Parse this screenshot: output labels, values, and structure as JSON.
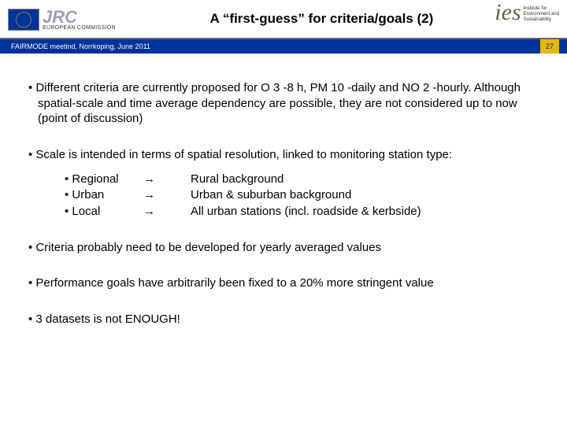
{
  "header": {
    "jrc_abbrev": "JRC",
    "jrc_full": "EUROPEAN COMMISSION",
    "title": "A “first-guess” for criteria/goals (2)",
    "ies_abbrev": "ies",
    "ies_line1": "Institute for",
    "ies_line2": "Environment and",
    "ies_line3": "Sustainability"
  },
  "subbar": {
    "text": "FAIRMODE meetind, Norrkoping, June 2011",
    "page": "27"
  },
  "bullets": {
    "b1": "Different criteria are currently proposed for O 3 -8 h, PM 10 -daily and NO 2 -hourly. Although spatial-scale and time average dependency are possible, they are not considered up to now (point of discussion)",
    "b2": "Scale is intended in terms of spatial resolution, linked to monitoring station type:",
    "b3": "Criteria probably need to be developed for yearly averaged values",
    "b4": "Performance goals have arbitrarily been fixed to a 20% more stringent value",
    "b5": "3 datasets is not ENOUGH!"
  },
  "scale_rows": [
    {
      "scale": "Regional",
      "arrow": "→",
      "desc": "Rural background"
    },
    {
      "scale": "Urban",
      "arrow": "→",
      "desc": "Urban & suburban background"
    },
    {
      "scale": "Local",
      "arrow": "→",
      "desc": "All urban stations (incl. roadside & kerbside)"
    }
  ],
  "colors": {
    "bar_bg": "#003399",
    "page_bg": "#e6b800"
  }
}
